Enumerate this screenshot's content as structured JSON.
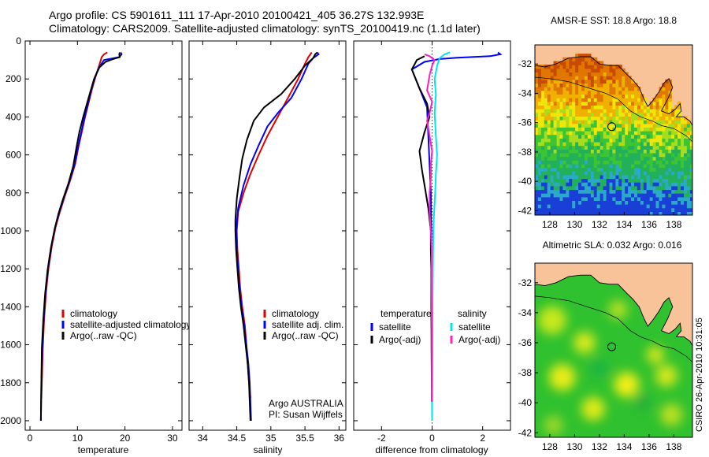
{
  "header": {
    "line1": "Argo profile: CS 5901611_111 17-Apr-2010 20100421_405 36.27S 132.993E",
    "line2": "Climatology: CARS2009. Satellite-adjusted climatology: synTS_20100419.nc (1.1d later)"
  },
  "stamp": "CSIRO 26-Apr-2010 10:31:05",
  "colors": {
    "climatology": "#e00000",
    "satellite": "#0000ff",
    "argo": "#000000",
    "satellite_sal": "#00e5ee",
    "argo_adj_sal": "#ff20c0",
    "land": "#f9c39a"
  },
  "chart_data": [
    {
      "id": "temperature",
      "type": "line",
      "xlabel": "temperature",
      "ylabel": "",
      "xlim": [
        -1,
        32
      ],
      "ylim": [
        2050,
        0
      ],
      "y_inverted": true,
      "xticks": [
        0,
        10,
        20,
        30
      ],
      "yticks": [
        0,
        200,
        400,
        600,
        800,
        1000,
        1200,
        1400,
        1600,
        1800,
        2000
      ],
      "series": [
        {
          "name": "climatology",
          "color": "#e00000",
          "points": [
            [
              16.3,
              60
            ],
            [
              15.6,
              70
            ],
            [
              15.1,
              85
            ],
            [
              14.8,
              110
            ],
            [
              14.3,
              150
            ],
            [
              13.8,
              190
            ],
            [
              13.1,
              250
            ],
            [
              12.4,
              320
            ],
            [
              11.6,
              400
            ],
            [
              10.9,
              480
            ],
            [
              10.2,
              560
            ],
            [
              9.5,
              650
            ],
            [
              8.4,
              740
            ],
            [
              7.3,
              820
            ],
            [
              6.3,
              900
            ],
            [
              5.4,
              980
            ],
            [
              4.6,
              1080
            ],
            [
              3.9,
              1200
            ],
            [
              3.4,
              1320
            ],
            [
              3.0,
              1460
            ],
            [
              2.7,
              1620
            ],
            [
              2.5,
              1800
            ],
            [
              2.4,
              1880
            ]
          ]
        },
        {
          "name": "satellite-adjusted climatology",
          "color": "#0000ff",
          "points": [
            [
              19.1,
              60
            ],
            [
              19.3,
              70
            ],
            [
              18.8,
              85
            ],
            [
              15.6,
              100
            ],
            [
              14.5,
              140
            ],
            [
              13.7,
              190
            ],
            [
              13.0,
              250
            ],
            [
              12.3,
              320
            ],
            [
              11.5,
              400
            ],
            [
              10.8,
              480
            ],
            [
              10.1,
              560
            ],
            [
              9.4,
              650
            ],
            [
              8.3,
              740
            ],
            [
              7.2,
              820
            ],
            [
              6.2,
              900
            ],
            [
              5.3,
              980
            ],
            [
              4.5,
              1080
            ],
            [
              3.8,
              1200
            ],
            [
              3.3,
              1320
            ],
            [
              2.9,
              1460
            ],
            [
              2.6,
              1620
            ],
            [
              2.4,
              1800
            ],
            [
              2.3,
              2000
            ]
          ]
        },
        {
          "name": "Argo(..raw -QC)",
          "color": "#000000",
          "points": [
            [
              18.9,
              60
            ],
            [
              18.8,
              70
            ],
            [
              18.9,
              85
            ],
            [
              17.5,
              95
            ],
            [
              15.9,
              110
            ],
            [
              14.6,
              140
            ],
            [
              13.5,
              200
            ],
            [
              12.8,
              260
            ],
            [
              12.0,
              330
            ],
            [
              11.2,
              400
            ],
            [
              10.4,
              480
            ],
            [
              9.8,
              560
            ],
            [
              9.1,
              660
            ],
            [
              8.1,
              750
            ],
            [
              7.0,
              830
            ],
            [
              6.0,
              910
            ],
            [
              5.2,
              990
            ],
            [
              4.4,
              1090
            ],
            [
              3.7,
              1210
            ],
            [
              3.2,
              1330
            ],
            [
              2.8,
              1470
            ],
            [
              2.5,
              1620
            ],
            [
              2.4,
              1800
            ],
            [
              2.3,
              2000
            ]
          ]
        }
      ],
      "legend": [
        "climatology",
        "satellite-adjusted climatology",
        "Argo(..raw -QC)"
      ]
    },
    {
      "id": "salinity",
      "type": "line",
      "xlabel": "salinity",
      "ylabel": "",
      "xlim": [
        33.8,
        36.1
      ],
      "ylim": [
        2050,
        0
      ],
      "y_inverted": true,
      "xticks": [
        34,
        34.5,
        35,
        35.5,
        36
      ],
      "yticks": [],
      "series": [
        {
          "name": "climatology",
          "color": "#e00000",
          "points": [
            [
              35.6,
              60
            ],
            [
              35.55,
              85
            ],
            [
              35.5,
              120
            ],
            [
              35.4,
              200
            ],
            [
              35.25,
              300
            ],
            [
              35.1,
              400
            ],
            [
              34.95,
              500
            ],
            [
              34.82,
              600
            ],
            [
              34.7,
              700
            ],
            [
              34.6,
              800
            ],
            [
              34.52,
              900
            ],
            [
              34.5,
              1000
            ],
            [
              34.51,
              1100
            ],
            [
              34.53,
              1200
            ],
            [
              34.55,
              1300
            ],
            [
              34.58,
              1400
            ],
            [
              34.62,
              1500
            ],
            [
              34.64,
              1600
            ],
            [
              34.66,
              1700
            ],
            [
              34.68,
              1800
            ],
            [
              34.7,
              1880
            ]
          ]
        },
        {
          "name": "satellite adj. clim.",
          "color": "#0000ff",
          "points": [
            [
              35.68,
              60
            ],
            [
              35.7,
              70
            ],
            [
              35.62,
              90
            ],
            [
              35.55,
              120
            ],
            [
              35.45,
              200
            ],
            [
              35.3,
              300
            ],
            [
              35.1,
              380
            ],
            [
              34.95,
              450
            ],
            [
              34.82,
              550
            ],
            [
              34.7,
              650
            ],
            [
              34.6,
              760
            ],
            [
              34.52,
              880
            ],
            [
              34.49,
              1000
            ],
            [
              34.5,
              1100
            ],
            [
              34.52,
              1200
            ],
            [
              34.54,
              1300
            ],
            [
              34.57,
              1400
            ],
            [
              34.61,
              1500
            ],
            [
              34.64,
              1600
            ],
            [
              34.67,
              1700
            ],
            [
              34.69,
              1800
            ],
            [
              34.71,
              2000
            ]
          ]
        },
        {
          "name": "Argo(..raw -QC)",
          "color": "#000000",
          "points": [
            [
              35.68,
              60
            ],
            [
              35.65,
              70
            ],
            [
              35.62,
              90
            ],
            [
              35.5,
              130
            ],
            [
              35.35,
              200
            ],
            [
              35.15,
              280
            ],
            [
              34.9,
              350
            ],
            [
              34.75,
              420
            ],
            [
              34.65,
              520
            ],
            [
              34.58,
              620
            ],
            [
              34.54,
              720
            ],
            [
              34.5,
              830
            ],
            [
              34.48,
              940
            ],
            [
              34.48,
              1000
            ],
            [
              34.49,
              1100
            ],
            [
              34.51,
              1200
            ],
            [
              34.53,
              1300
            ],
            [
              34.56,
              1400
            ],
            [
              34.6,
              1500
            ],
            [
              34.63,
              1600
            ],
            [
              34.66,
              1700
            ],
            [
              34.68,
              1800
            ],
            [
              34.7,
              2000
            ]
          ]
        }
      ],
      "legend": [
        "climatology",
        "satellite adj. clim.",
        "Argo(..raw -QC)"
      ],
      "annotation": [
        "Argo AUSTRALIA",
        "PI: Susan Wijffels"
      ]
    },
    {
      "id": "difference",
      "type": "line",
      "xlabel": "difference from climatology",
      "ylabel": "",
      "xlim": [
        -3.1,
        3.1
      ],
      "ylim": [
        2050,
        0
      ],
      "y_inverted": true,
      "xticks": [
        -2,
        0,
        2
      ],
      "yticks": [],
      "series": [
        {
          "name": "temperature satellite",
          "color": "#0000ff",
          "points": [
            [
              2.6,
              60
            ],
            [
              2.7,
              70
            ],
            [
              2.3,
              80
            ],
            [
              1.0,
              88
            ],
            [
              0.3,
              95
            ],
            [
              -0.3,
              110
            ],
            [
              -0.8,
              150
            ],
            [
              -0.5,
              250
            ],
            [
              -0.2,
              350
            ],
            [
              -0.15,
              500
            ],
            [
              -0.1,
              650
            ],
            [
              -0.05,
              800
            ],
            [
              -0.03,
              1000
            ],
            [
              -0.02,
              1200
            ],
            [
              -0.01,
              1400
            ],
            [
              0.0,
              1600
            ],
            [
              0.0,
              1800
            ],
            [
              0.0,
              2000
            ]
          ]
        },
        {
          "name": "temperature Argo(-adj)",
          "color": "#000000",
          "points": [
            [
              -0.3,
              80
            ],
            [
              -0.6,
              100
            ],
            [
              -0.8,
              150
            ],
            [
              -0.5,
              250
            ],
            [
              -0.2,
              330
            ],
            [
              -0.1,
              400
            ],
            [
              -0.3,
              480
            ],
            [
              -0.5,
              580
            ],
            [
              -0.4,
              680
            ],
            [
              -0.3,
              760
            ],
            [
              -0.15,
              880
            ],
            [
              -0.05,
              1000
            ],
            [
              -0.05,
              1100
            ],
            [
              -0.03,
              1200
            ],
            [
              -0.03,
              1400
            ],
            [
              -0.02,
              1700
            ],
            [
              -0.01,
              1900
            ]
          ]
        },
        {
          "name": "salinity satellite",
          "color": "#00e5ee",
          "points": [
            [
              0.7,
              60
            ],
            [
              0.5,
              70
            ],
            [
              0.3,
              90
            ],
            [
              0.2,
              130
            ],
            [
              0.1,
              200
            ],
            [
              0.15,
              280
            ],
            [
              0.1,
              380
            ],
            [
              0.15,
              500
            ],
            [
              0.2,
              600
            ],
            [
              0.15,
              700
            ],
            [
              0.12,
              800
            ],
            [
              0.08,
              900
            ],
            [
              0.05,
              1000
            ],
            [
              0.03,
              1200
            ],
            [
              0.02,
              1400
            ],
            [
              0.01,
              1700
            ],
            [
              0.0,
              2000
            ]
          ]
        },
        {
          "name": "salinity Argo(-adj)",
          "color": "#ff20c0",
          "points": [
            [
              -0.3,
              70
            ],
            [
              -0.1,
              80
            ],
            [
              0.1,
              100
            ],
            [
              0.0,
              130
            ],
            [
              -0.1,
              180
            ],
            [
              -0.2,
              260
            ],
            [
              0.0,
              320
            ],
            [
              -0.1,
              380
            ],
            [
              -0.2,
              420
            ],
            [
              -0.1,
              500
            ],
            [
              0.0,
              580
            ],
            [
              -0.05,
              650
            ],
            [
              -0.05,
              720
            ],
            [
              -0.1,
              800
            ],
            [
              -0.1,
              900
            ],
            [
              -0.05,
              1000
            ],
            [
              -0.02,
              1100
            ],
            [
              -0.02,
              1300
            ],
            [
              -0.01,
              1600
            ],
            [
              -0.01,
              1900
            ]
          ]
        }
      ],
      "legend_headings": [
        "temperature",
        "salinity"
      ],
      "legend": [
        "satellite",
        "Argo(-adj)",
        "satellite",
        "Argo(-adj)"
      ]
    },
    {
      "id": "sst-map",
      "type": "heatmap",
      "title": "AMSR-E SST: 18.8 Argo: 18.8",
      "xlim": [
        126.8,
        139.5
      ],
      "ylim": [
        -42.3,
        -30.7
      ],
      "xticks": [
        128,
        130,
        132,
        134,
        136,
        138
      ],
      "yticks": [
        -32,
        -34,
        -36,
        -38,
        -40,
        -42
      ],
      "argo_position": [
        132.993,
        -36.27
      ]
    },
    {
      "id": "sla-map",
      "type": "heatmap",
      "title": "Altimetric SLA: 0.032 Argo: 0.016",
      "xlim": [
        126.8,
        139.5
      ],
      "ylim": [
        -42.3,
        -30.7
      ],
      "xticks": [
        128,
        130,
        132,
        134,
        136,
        138
      ],
      "yticks": [
        -32,
        -34,
        -36,
        -38,
        -40,
        -42
      ],
      "argo_position": [
        132.993,
        -36.27
      ]
    }
  ]
}
